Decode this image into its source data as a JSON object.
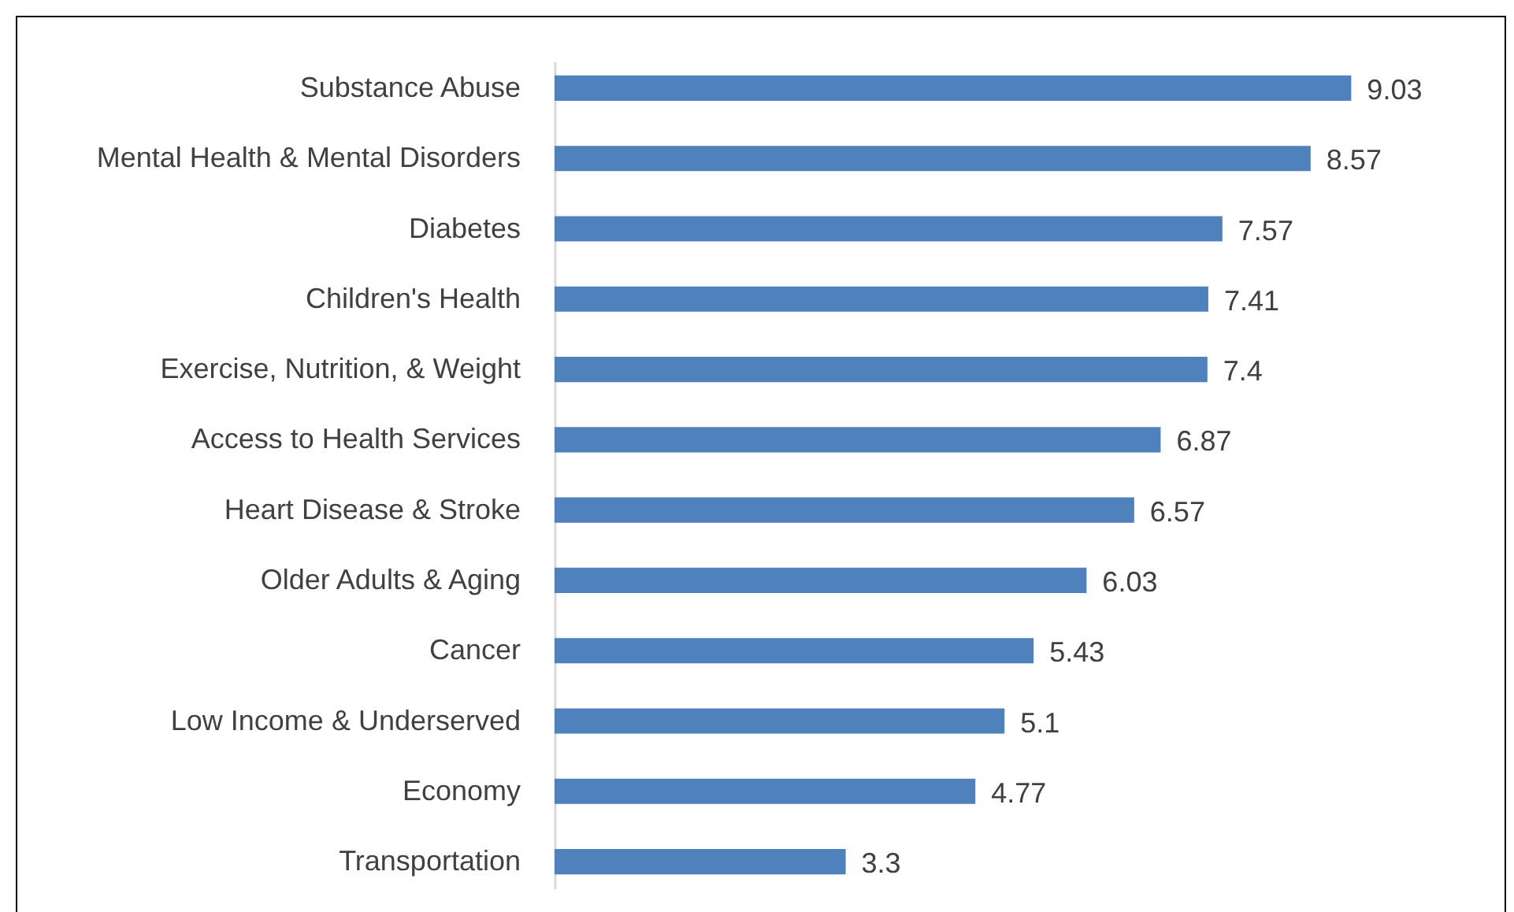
{
  "chart_data": {
    "type": "bar",
    "orientation": "horizontal",
    "categories": [
      "Substance Abuse",
      "Mental Health & Mental Disorders",
      "Diabetes",
      "Children's Health",
      "Exercise, Nutrition, & Weight",
      "Access to Health Services",
      "Heart Disease & Stroke",
      "Older Adults & Aging",
      "Cancer",
      "Low Income & Underserved",
      "Economy",
      "Transportation"
    ],
    "values": [
      9.03,
      8.57,
      7.57,
      7.41,
      7.4,
      6.87,
      6.57,
      6.03,
      5.43,
      5.1,
      4.77,
      3.3
    ],
    "color": "#4f81bd",
    "data_labels": true
  }
}
